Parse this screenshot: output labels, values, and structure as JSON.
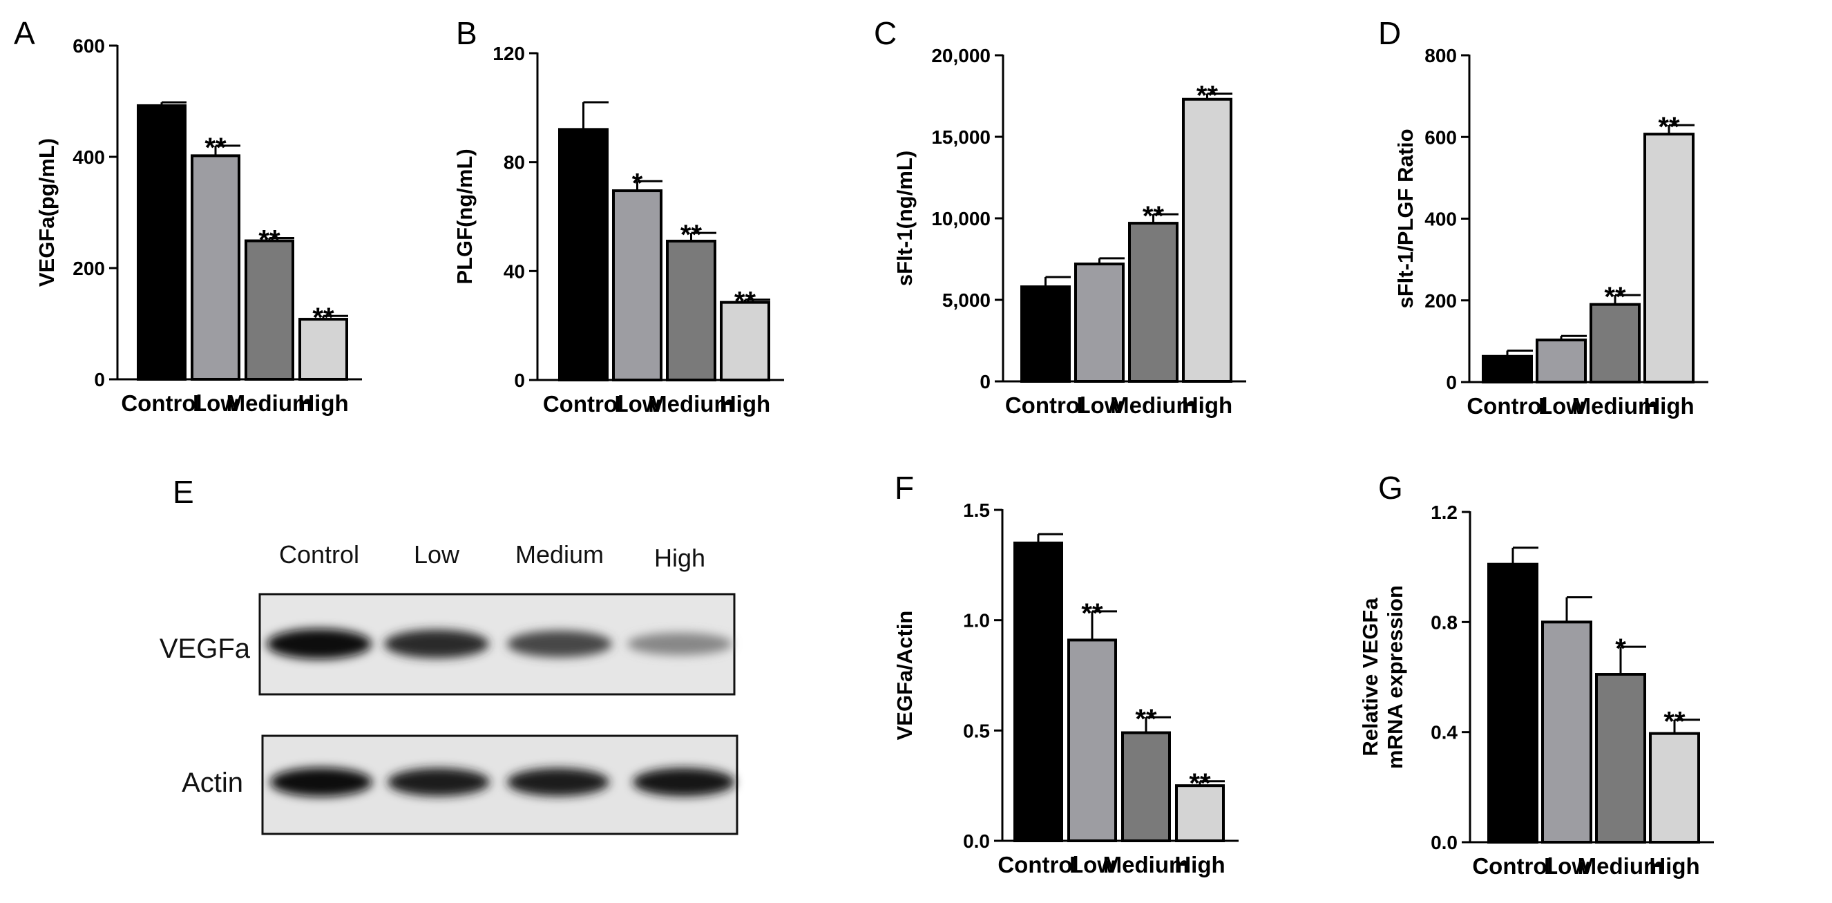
{
  "figure": {
    "colors": {
      "Control": "#000000",
      "Low": "#9d9da2",
      "Medium": "#7a7a7a",
      "High": "#d4d4d4"
    }
  },
  "chart_data": [
    {
      "panel": "A",
      "type": "bar",
      "categories": [
        "Control",
        "Low",
        "Medium",
        "High"
      ],
      "values": [
        492,
        402,
        249,
        108
      ],
      "errors": [
        6,
        18,
        5,
        6
      ],
      "significance": [
        "",
        "**",
        "**",
        "**"
      ],
      "ylabel": "VEGFa(pg/mL)",
      "ylim": [
        0,
        600
      ],
      "yticks": [
        0,
        200,
        400,
        600
      ],
      "ytick_labels": [
        "0",
        "200",
        "400",
        "600"
      ]
    },
    {
      "panel": "B",
      "type": "bar",
      "categories": [
        "Control",
        "Low",
        "Medium",
        "High"
      ],
      "values": [
        92,
        69.5,
        51,
        28.5
      ],
      "errors": [
        10,
        3.5,
        3,
        1
      ],
      "significance": [
        "",
        "*",
        "**",
        "**"
      ],
      "ylabel": "PLGF(ng/mL)",
      "ylim": [
        0,
        120
      ],
      "yticks": [
        0,
        40,
        80,
        120
      ],
      "ytick_labels": [
        "0",
        "40",
        "80",
        "120"
      ]
    },
    {
      "panel": "C",
      "type": "bar",
      "categories": [
        "Control",
        "Low",
        "Medium",
        "High"
      ],
      "values": [
        5800,
        7200,
        9700,
        17300
      ],
      "errors": [
        600,
        350,
        550,
        350
      ],
      "significance": [
        "",
        "",
        "**",
        "**"
      ],
      "ylabel": "sFlt-1(ng/mL)",
      "ylim": [
        0,
        20000
      ],
      "yticks": [
        0,
        5000,
        10000,
        15000,
        20000
      ],
      "ytick_labels": [
        "0",
        "5,000",
        "10,000",
        "15,000",
        "20,000"
      ]
    },
    {
      "panel": "D",
      "type": "bar",
      "categories": [
        "Control",
        "Low",
        "Medium",
        "High"
      ],
      "values": [
        63,
        103,
        190,
        607
      ],
      "errors": [
        14,
        10,
        23,
        22
      ],
      "significance": [
        "",
        "",
        "**",
        "**"
      ],
      "ylabel": "sFlt-1/PLGF Ratio",
      "ylim": [
        0,
        800
      ],
      "yticks": [
        0,
        200,
        400,
        600,
        800
      ],
      "ytick_labels": [
        "0",
        "200",
        "400",
        "600",
        "800"
      ]
    },
    {
      "panel": "F",
      "type": "bar",
      "categories": [
        "Control",
        "Low",
        "Medium",
        "High"
      ],
      "values": [
        1.35,
        0.91,
        0.49,
        0.25
      ],
      "errors": [
        0.04,
        0.13,
        0.07,
        0.02
      ],
      "significance": [
        "",
        "**",
        "**",
        "**"
      ],
      "ylabel": "VEGFa/Actin",
      "ylim": [
        0,
        1.5
      ],
      "yticks": [
        0,
        0.5,
        1.0,
        1.5
      ],
      "ytick_labels": [
        "0.0",
        "0.5",
        "1.0",
        "1.5"
      ]
    },
    {
      "panel": "G",
      "type": "bar",
      "categories": [
        "Control",
        "Low",
        "Medium",
        "High"
      ],
      "values": [
        1.01,
        0.8,
        0.61,
        0.395
      ],
      "errors": [
        0.06,
        0.09,
        0.1,
        0.05
      ],
      "significance": [
        "",
        "",
        "*",
        "**"
      ],
      "ylabel": "Relative VEGFa\nmRNA expression",
      "ylim": [
        0,
        1.2
      ],
      "yticks": [
        0,
        0.4,
        0.8,
        1.2
      ],
      "ytick_labels": [
        "0.0",
        "0.4",
        "0.8",
        "1.2"
      ]
    }
  ],
  "blot": {
    "panel": "E",
    "lanes": [
      "Control",
      "Low",
      "Medium",
      "High"
    ],
    "bands": [
      {
        "name": "VEGFa",
        "intensity": [
          1.0,
          0.85,
          0.7,
          0.35
        ]
      },
      {
        "name": "Actin",
        "intensity": [
          1.0,
          0.92,
          0.92,
          0.95
        ]
      }
    ]
  }
}
